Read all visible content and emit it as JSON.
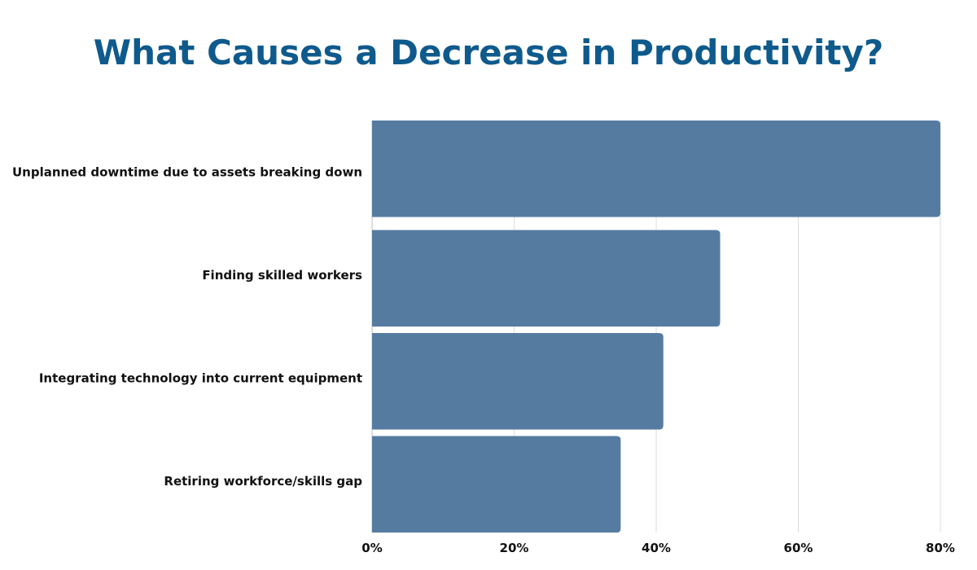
{
  "chart_data": {
    "type": "bar",
    "orientation": "horizontal",
    "title": "What Causes a Decrease in Productivity?",
    "categories": [
      "Unplanned downtime due to assets breaking down",
      "Finding skilled workers",
      "Integrating technology into current equipment",
      "Retiring workforce/skills gap"
    ],
    "values": [
      80,
      49,
      41,
      35
    ],
    "unit": "%",
    "xlim": [
      0,
      80
    ],
    "xticks": [
      0,
      20,
      40,
      60,
      80
    ],
    "xtick_labels": [
      "0%",
      "20%",
      "40%",
      "60%",
      "80%"
    ],
    "xlabel": "",
    "ylabel": "",
    "grid": true,
    "bar_color": "#557ba1",
    "title_color": "#0f5a8c"
  }
}
